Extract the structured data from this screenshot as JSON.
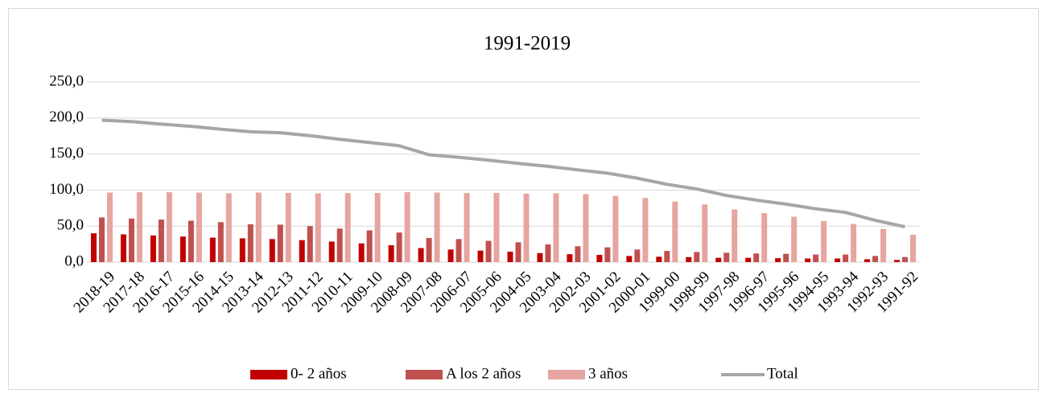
{
  "chart_data": {
    "type": "bar",
    "title": "1991-2019",
    "categories": [
      "2018-19",
      "2017-18",
      "2016-17",
      "2015-16",
      "2014-15",
      "2013-14",
      "2012-13",
      "2011-12",
      "2010-11",
      "2009-10",
      "2008-09",
      "2007-08",
      "2006-07",
      "2005-06",
      "2004-05",
      "2003-04",
      "2002-03",
      "2001-02",
      "2000-01",
      "1999-00",
      "1998-99",
      "1997-98",
      "1996-97",
      "1995-96",
      "1994-95",
      "1993-94",
      "1992-93",
      "1991-92"
    ],
    "series": [
      {
        "name": "0- 2 años",
        "color": "#c00000",
        "type": "bar",
        "values": [
          40,
          38.5,
          37,
          35.5,
          34,
          33,
          32,
          30.5,
          28.5,
          26,
          23.5,
          19.5,
          17.5,
          16,
          14.5,
          12.5,
          11,
          10,
          8.5,
          7.5,
          7,
          6,
          6,
          5.5,
          5,
          5,
          4,
          3
        ]
      },
      {
        "name": "A los 2 años",
        "color": "#c0504d",
        "type": "bar",
        "values": [
          62,
          60.5,
          59,
          57.5,
          55.5,
          52.5,
          52,
          50,
          46.5,
          44,
          41,
          33.5,
          32,
          29.5,
          27.5,
          24.5,
          22,
          20.5,
          17.5,
          15.5,
          14,
          13,
          12,
          11.5,
          10.5,
          10.5,
          8.5,
          7
        ]
      },
      {
        "name": "3 años",
        "color": "#e6a5a0",
        "type": "bar",
        "values": [
          96.5,
          97,
          97,
          96.5,
          95.5,
          96.5,
          96,
          95.5,
          96,
          96,
          97,
          96.5,
          96,
          96,
          95,
          95.5,
          94.5,
          92,
          89,
          84,
          80,
          73,
          68,
          63,
          57,
          53,
          46,
          38
        ]
      },
      {
        "name": "Total",
        "color": "#a6a6a6",
        "type": "line",
        "values": [
          197,
          195,
          191.5,
          188.5,
          184.5,
          181,
          179.5,
          175.5,
          170.5,
          166,
          161.5,
          149,
          145.5,
          141.5,
          137,
          133,
          128,
          123.5,
          116.5,
          108,
          101.5,
          92.5,
          86,
          80.5,
          74,
          69,
          58,
          49
        ]
      }
    ],
    "ylim": [
      0,
      250
    ],
    "yticks": [
      {
        "value": 0,
        "label": "0,0"
      },
      {
        "value": 50,
        "label": "50,0"
      },
      {
        "value": 100,
        "label": "100,0"
      },
      {
        "value": 150,
        "label": "150,0"
      },
      {
        "value": 200,
        "label": "200,0"
      },
      {
        "value": 250,
        "label": "250,0"
      }
    ],
    "grid": true,
    "legend": "bottom"
  }
}
